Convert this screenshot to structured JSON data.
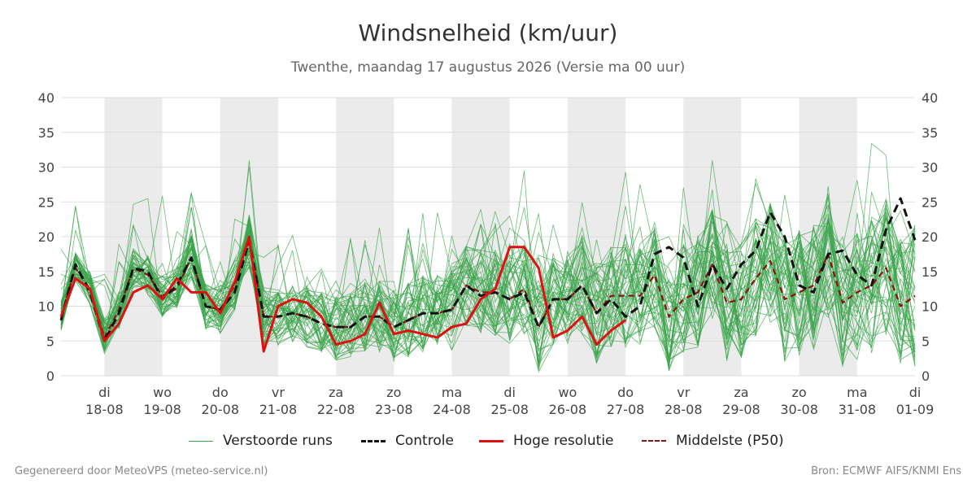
{
  "title": "Windsnelheid (km/uur)",
  "subtitle": "Twenthe, maandag 17 augustus 2026 (Versie ma 00 uur)",
  "footer_left": "Gegenereerd door MeteoVPS (meteo-service.nl)",
  "footer_right": "Bron: ECMWF AIFS/KNMI Ens",
  "colors": {
    "ensemble": "#3aa34a",
    "control": "#111111",
    "hires": "#dd1111",
    "median": "#8b1010",
    "band": "#ebebeb",
    "grid": "#dddddd"
  },
  "legend": [
    {
      "key": "ensemble",
      "label": "Verstoorde runs"
    },
    {
      "key": "control",
      "label": "Controle"
    },
    {
      "key": "hires",
      "label": "Hoge resolutie"
    },
    {
      "key": "median",
      "label": "Middelste (P50)"
    }
  ],
  "chart_data": {
    "type": "line",
    "title": "Windsnelheid (km/uur)",
    "ylim": [
      0,
      40
    ],
    "yticks": [
      0,
      5,
      10,
      15,
      20,
      25,
      30,
      35,
      40
    ],
    "xlim": [
      -0.75,
      14
    ],
    "grid": true,
    "legend_position": "bottom",
    "x_ticks": [
      {
        "x": 0,
        "day": "di",
        "date": "18-08"
      },
      {
        "x": 1,
        "day": "wo",
        "date": "19-08"
      },
      {
        "x": 2,
        "day": "do",
        "date": "20-08"
      },
      {
        "x": 3,
        "day": "vr",
        "date": "21-08"
      },
      {
        "x": 4,
        "day": "za",
        "date": "22-08"
      },
      {
        "x": 5,
        "day": "zo",
        "date": "23-08"
      },
      {
        "x": 6,
        "day": "ma",
        "date": "24-08"
      },
      {
        "x": 7,
        "day": "di",
        "date": "25-08"
      },
      {
        "x": 8,
        "day": "wo",
        "date": "26-08"
      },
      {
        "x": 9,
        "day": "do",
        "date": "27-08"
      },
      {
        "x": 10,
        "day": "vr",
        "date": "28-08"
      },
      {
        "x": 11,
        "day": "za",
        "date": "29-08"
      },
      {
        "x": 12,
        "day": "zo",
        "date": "30-08"
      },
      {
        "x": 13,
        "day": "ma",
        "date": "31-08"
      },
      {
        "x": 14,
        "day": "di",
        "date": "01-09"
      }
    ],
    "shaded_days": [
      0,
      2,
      4,
      6,
      8,
      10,
      12
    ],
    "series": [
      {
        "name": "Controle",
        "style": "dashed",
        "x": [
          -0.75,
          -0.5,
          -0.25,
          0,
          0.25,
          0.5,
          0.75,
          1,
          1.25,
          1.5,
          1.75,
          2,
          2.25,
          2.5,
          2.75,
          3,
          3.25,
          3.5,
          3.75,
          4,
          4.25,
          4.5,
          4.75,
          5,
          5.25,
          5.5,
          5.75,
          6,
          6.25,
          6.5,
          6.75,
          7,
          7.25,
          7.5,
          7.75,
          8,
          8.25,
          8.5,
          8.75,
          9,
          9.25,
          9.5,
          9.75,
          10,
          10.25,
          10.5,
          10.75,
          11,
          11.25,
          11.5,
          11.75,
          12,
          12.25,
          12.5,
          12.75,
          13,
          13.25,
          13.5,
          13.75,
          14
        ],
        "y": [
          8,
          16,
          12,
          5,
          9,
          15.5,
          15,
          11,
          13,
          17,
          10,
          9.5,
          12,
          19.5,
          8.5,
          8.5,
          9,
          8.5,
          7.5,
          7,
          7,
          8.5,
          8.5,
          7,
          8,
          9,
          9,
          9.5,
          13,
          11.5,
          12,
          11,
          12,
          7,
          11,
          11,
          13,
          9,
          11,
          8.5,
          10,
          17.5,
          18.5,
          17,
          10,
          16,
          12.5,
          16,
          18,
          23.5,
          20,
          13,
          12,
          17.5,
          18,
          14.5,
          13,
          21,
          25.5,
          19.5
        ]
      },
      {
        "name": "Hoge resolutie",
        "style": "solid",
        "x": [
          -0.75,
          -0.5,
          -0.25,
          0,
          0.25,
          0.5,
          0.75,
          1,
          1.25,
          1.5,
          1.75,
          2,
          2.25,
          2.5,
          2.75,
          3,
          3.25,
          3.5,
          3.75,
          4,
          4.25,
          4.5,
          4.75,
          5,
          5.25,
          5.5,
          5.75,
          6,
          6.25,
          6.5,
          6.75,
          7,
          7.25,
          7.5,
          7.75,
          8,
          8.25,
          8.5,
          8.75,
          9
        ],
        "y": [
          8.5,
          14,
          12.5,
          5,
          7.5,
          12,
          13,
          11,
          14,
          12,
          12,
          9,
          13.5,
          20,
          3.5,
          10,
          11,
          10.5,
          8.5,
          4.5,
          5,
          6,
          10.5,
          6,
          6.5,
          6,
          5.5,
          7,
          7.5,
          11,
          12.5,
          18.5,
          18.5,
          15.5,
          5.5,
          6.5,
          8.5,
          4.5,
          6.5,
          8
        ]
      },
      {
        "name": "Middelste (P50)",
        "style": "dashed",
        "x": [
          -0.75,
          -0.5,
          -0.25,
          0,
          0.25,
          0.5,
          0.75,
          1,
          1.25,
          1.5,
          1.75,
          2,
          2.25,
          2.5,
          2.75,
          3,
          3.25,
          3.5,
          3.75,
          4,
          4.25,
          4.5,
          4.75,
          5,
          5.25,
          5.5,
          5.75,
          6,
          6.25,
          6.5,
          6.75,
          7,
          7.25,
          7.5,
          7.75,
          8,
          8.25,
          8.5,
          8.75,
          9,
          9.25,
          9.5,
          9.75,
          10,
          10.25,
          10.5,
          10.75,
          11,
          11.25,
          11.5,
          11.75,
          12,
          12.25,
          12.5,
          12.75,
          13,
          13.25,
          13.5,
          13.75,
          14
        ],
        "y": [
          8.5,
          15.5,
          12.5,
          5.5,
          9.5,
          15.5,
          14.5,
          11.5,
          12.5,
          17,
          10,
          9.5,
          13,
          19.5,
          8.5,
          8.5,
          9,
          8.5,
          7.5,
          7,
          7,
          8.5,
          8.5,
          7,
          8,
          9,
          9,
          9.5,
          13,
          12,
          12,
          11,
          12.5,
          7,
          11,
          11,
          13,
          9,
          11.5,
          11.5,
          11.5,
          14.5,
          8.5,
          11,
          12,
          16,
          10.5,
          11,
          14,
          16.5,
          11,
          12,
          13,
          17.5,
          10.5,
          12,
          13,
          15.5,
          10,
          11.5
        ]
      }
    ]
  }
}
